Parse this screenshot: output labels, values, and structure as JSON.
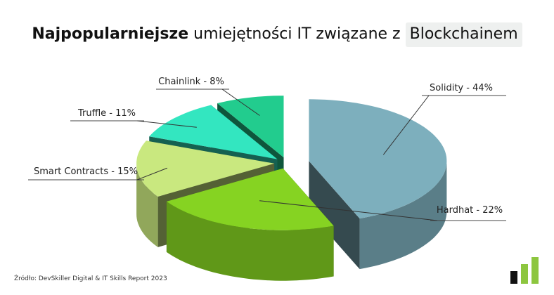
{
  "header": {
    "title_bold": "Najpopularniejsze",
    "title_regular": "umiejętności IT związane z",
    "title_highlight": "Blockchainem"
  },
  "footer": {
    "source": "Źródło: DevSkiller Digital & IT Skills Report 2023"
  },
  "logo": {
    "icon": "bar-chart-logo-icon",
    "colors": [
      "#111111",
      "#8dc63f",
      "#8dc63f"
    ]
  },
  "chart_data": {
    "type": "pie",
    "style": "3d-exploded",
    "categories": [
      "Solidity",
      "Hardhat",
      "Smart Contracts",
      "Truffle",
      "Chainlink"
    ],
    "values": [
      44,
      22,
      15,
      11,
      8
    ],
    "unit": "%",
    "labels": [
      "Solidity - 44%",
      "Hardhat - 22%",
      "Smart Contracts - 15%",
      "Truffle - 11%",
      "Chainlink - 8%"
    ],
    "colors": [
      "#7dafbd",
      "#86d322",
      "#c9e87f",
      "#33e6c0",
      "#22cc8e"
    ],
    "title": "",
    "legend": "none"
  }
}
